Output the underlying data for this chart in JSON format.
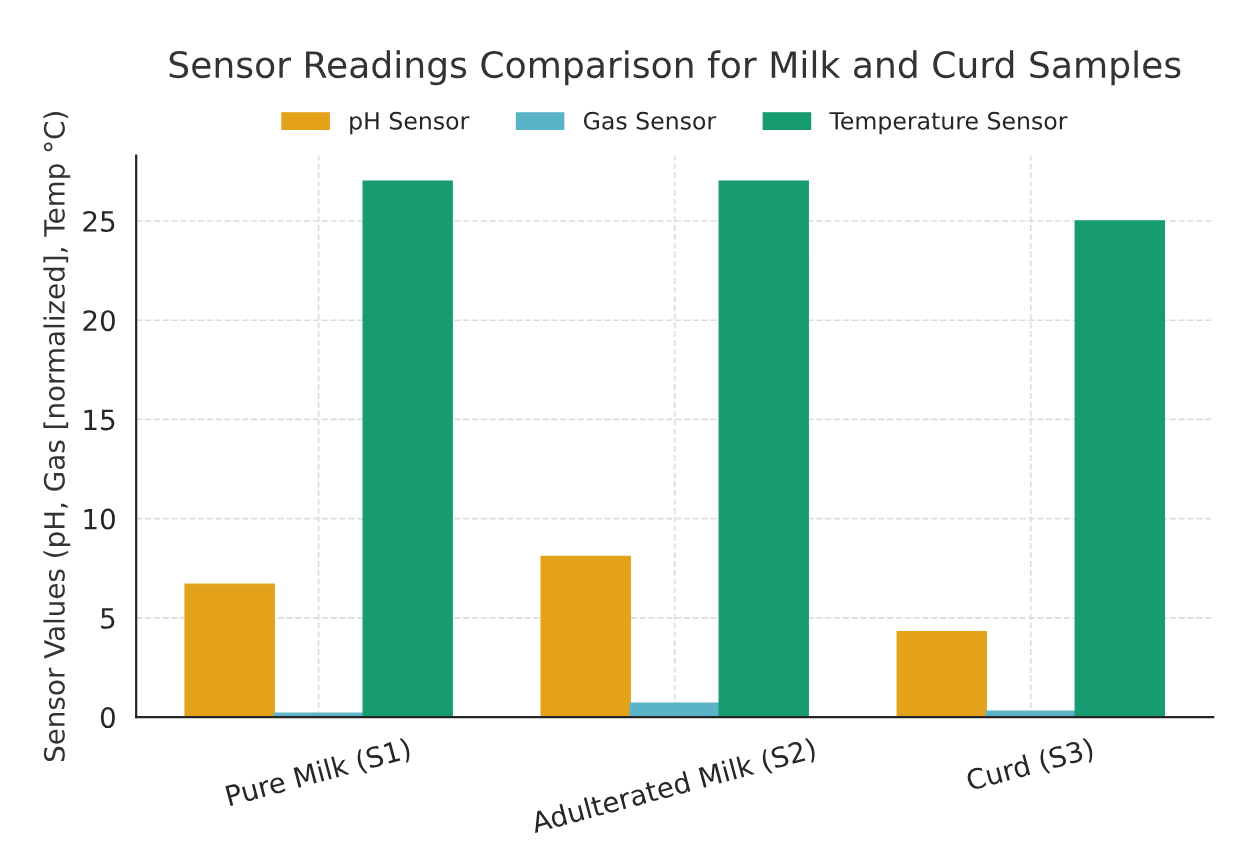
{
  "chart_data": {
    "type": "bar",
    "title": "Sensor Readings Comparison for Milk and Curd Samples",
    "ylabel": "Sensor Values (pH, Gas [normalized], Temp °C)",
    "categories": [
      "Pure Milk (S1)",
      "Adulterated Milk (S2)",
      "Curd (S3)"
    ],
    "series": [
      {
        "name": "pH Sensor",
        "color": "#e3a21a",
        "values": [
          6.7,
          8.1,
          4.3
        ]
      },
      {
        "name": "Gas Sensor",
        "color": "#5ab4c8",
        "values": [
          0.2,
          0.7,
          0.3
        ]
      },
      {
        "name": "Temperature Sensor",
        "color": "#169c70",
        "values": [
          27,
          27,
          25
        ]
      }
    ],
    "ylim": [
      0,
      28.3
    ],
    "yticks": [
      0,
      5,
      10,
      15,
      20,
      25
    ],
    "grid": true,
    "legend": "top"
  }
}
